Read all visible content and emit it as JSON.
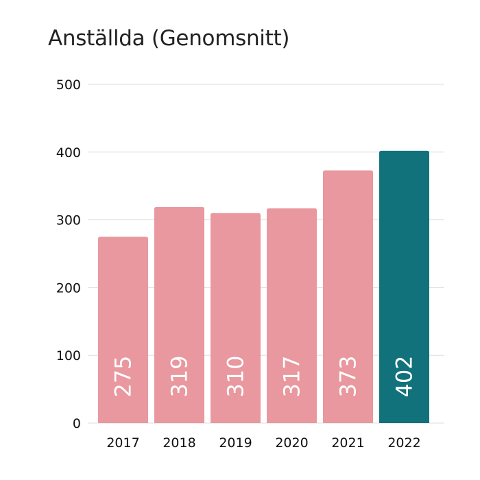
{
  "chart_data": {
    "type": "bar",
    "title": "Anställda (Genomsnitt)",
    "categories": [
      "2017",
      "2018",
      "2019",
      "2020",
      "2021",
      "2022"
    ],
    "values": [
      275,
      319,
      310,
      317,
      373,
      402
    ],
    "data_labels": [
      "275",
      "319",
      "310",
      "317",
      "373",
      "402"
    ],
    "ylim": [
      0,
      500
    ],
    "yticks": [
      "0",
      "100",
      "200",
      "300",
      "400",
      "500"
    ],
    "grid": true,
    "colors": {
      "default_bar": "#e8989e",
      "highlight_bar": "#12727c",
      "grid": "#dddddd"
    },
    "highlight_index": 5
  }
}
